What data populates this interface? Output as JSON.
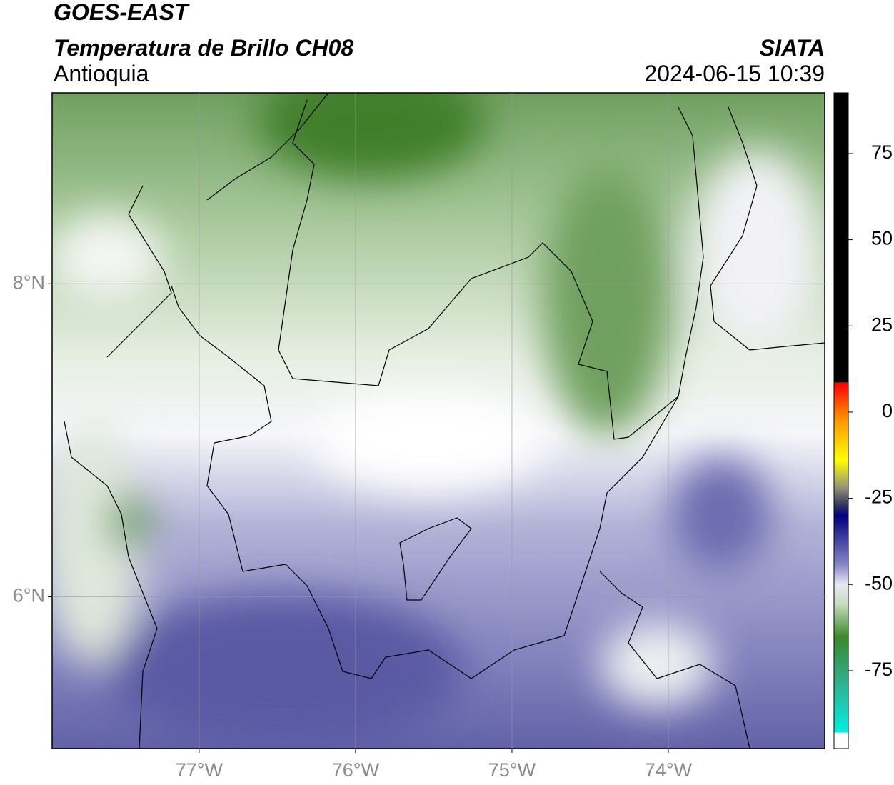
{
  "header": {
    "title": "GOES-EAST",
    "subtitle": "Temperatura de Brillo CH08",
    "region": "Antioquia",
    "source": "SIATA",
    "datetime": "2024-06-15 10:39"
  },
  "map": {
    "xlim": [
      -77.94,
      -73.0
    ],
    "ylim": [
      5.03,
      9.22
    ],
    "grid": true,
    "xticks": [
      {
        "value": -77,
        "label": "77°W"
      },
      {
        "value": -76,
        "label": "76°W"
      },
      {
        "value": -75,
        "label": "75°W"
      },
      {
        "value": -74,
        "label": "74°W"
      }
    ],
    "yticks": [
      {
        "value": 8,
        "label": "8°N"
      },
      {
        "value": 6,
        "label": "6°N"
      }
    ]
  },
  "colorbar": {
    "lim": [
      -97.6,
      92.6
    ],
    "ticks": [
      75,
      50,
      25,
      0,
      -25,
      -50,
      -75
    ]
  }
}
